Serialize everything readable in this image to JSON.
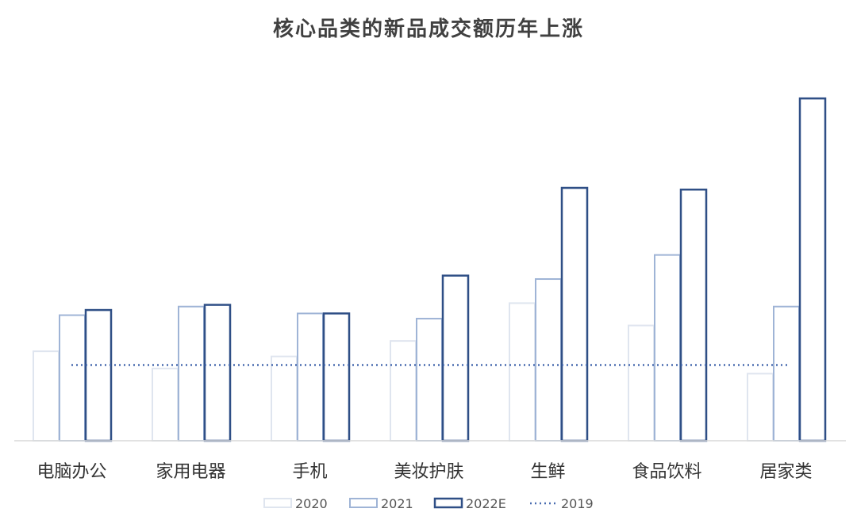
{
  "chart_data": {
    "type": "bar",
    "title": "核心品类的新品成交额历年上涨",
    "xlabel": "",
    "ylabel": "",
    "categories": [
      "电脑办公",
      "家用电器",
      "手机",
      "美妆护肤",
      "生鲜",
      "食品饮料",
      "居家类"
    ],
    "series": [
      {
        "name": "2020",
        "values": [
          26,
          21,
          24.5,
          29,
          40,
          33.5,
          19.5
        ],
        "color": "#dfe5ef"
      },
      {
        "name": "2021",
        "values": [
          36.5,
          39,
          37,
          35.5,
          47,
          54,
          39
        ],
        "color": "#9fb4d6"
      },
      {
        "name": "2022E",
        "values": [
          38,
          39.5,
          37,
          48,
          73.5,
          73,
          99.5
        ],
        "color": "#2f4f86"
      }
    ],
    "reference_line": {
      "name": "2019",
      "value": 22,
      "style": "dotted",
      "color": "#4a6db0"
    },
    "ylim": [
      0,
      100
    ],
    "grid": false,
    "legend_position": "bottom"
  }
}
